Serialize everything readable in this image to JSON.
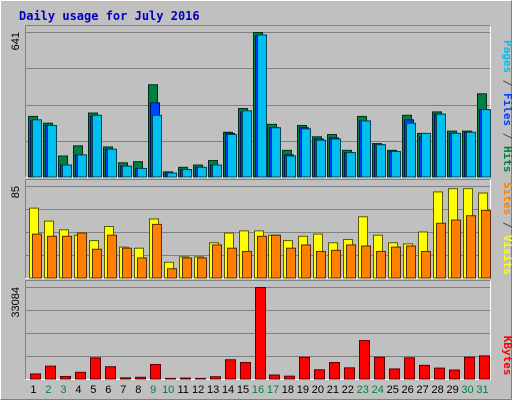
{
  "chart_data": {
    "type": "bar",
    "title": "Daily usage for July 2016",
    "categories": [
      "1",
      "2",
      "3",
      "4",
      "5",
      "6",
      "7",
      "8",
      "9",
      "10",
      "11",
      "12",
      "13",
      "14",
      "15",
      "16",
      "17",
      "18",
      "19",
      "20",
      "21",
      "22",
      "23",
      "24",
      "25",
      "26",
      "27",
      "28",
      "29",
      "30",
      "31"
    ],
    "weekend_days": [
      "2",
      "3",
      "9",
      "10",
      "16",
      "17",
      "23",
      "24",
      "30",
      "31"
    ],
    "panels": [
      {
        "id": "hits-files-pages",
        "ymax": 641,
        "ymax_label": "641",
        "right_labels": [
          {
            "text": "Pages",
            "color": "#00c0f0"
          },
          {
            "text": " / ",
            "color": "#4d4d4d"
          },
          {
            "text": "Files",
            "color": "#0040ff"
          },
          {
            "text": " / ",
            "color": "#4d4d4d"
          },
          {
            "text": "Hits",
            "color": "#008040"
          }
        ],
        "series": [
          {
            "name": "Hits",
            "color": "#008040",
            "values": [
              270,
              240,
              95,
              140,
              285,
              135,
              65,
              70,
              410,
              25,
              45,
              55,
              75,
              200,
              305,
              641,
              235,
              120,
              230,
              180,
              190,
              120,
              270,
              150,
              120,
              275,
              195,
              290,
              205,
              205,
              370
            ]
          },
          {
            "name": "Files",
            "color": "#0040ff",
            "values": [
              250,
              230,
              55,
              100,
              270,
              125,
              50,
              40,
              330,
              20,
              35,
              45,
              55,
              195,
              290,
              625,
              220,
              100,
              220,
              170,
              175,
              110,
              250,
              145,
              115,
              255,
              180,
              280,
              195,
              200,
              300
            ]
          },
          {
            "name": "Pages",
            "color": "#00c0f0",
            "values": [
              255,
              230,
              55,
              100,
              275,
              125,
              50,
              40,
              275,
              20,
              35,
              45,
              55,
              190,
              295,
              630,
              220,
              95,
              215,
              165,
              170,
              110,
              250,
              145,
              115,
              240,
              195,
              280,
              195,
              200,
              300
            ]
          }
        ]
      },
      {
        "id": "visits-sites",
        "ymax": 85,
        "ymax_label": "85",
        "right_labels": [
          {
            "text": "Sites",
            "color": "#ff8000"
          },
          {
            "text": " / ",
            "color": "#4d4d4d"
          },
          {
            "text": "Visits",
            "color": "#ffff00"
          }
        ],
        "series": [
          {
            "name": "Visits",
            "color": "#ffff00",
            "values": [
              65,
              53,
              45,
              40,
              35,
              48,
              29,
              28,
              55,
              15,
              20,
              20,
              33,
              42,
              44,
              44,
              40,
              35,
              39,
              41,
              33,
              36,
              57,
              40,
              33,
              32,
              43,
              80,
              83,
              83,
              79
            ]
          },
          {
            "name": "Sites",
            "color": "#ff8000",
            "values": [
              41,
              39,
              39,
              42,
              27,
              40,
              28,
              19,
              50,
              9,
              19,
              19,
              31,
              28,
              25,
              39,
              40,
              28,
              31,
              25,
              26,
              31,
              30,
              25,
              29,
              30,
              25,
              51,
              54,
              58,
              63
            ]
          }
        ]
      },
      {
        "id": "kbytes",
        "ymax": 33084,
        "ymax_label": "33084",
        "right_labels": [
          {
            "text": "KBytes",
            "color": "#ff0000"
          }
        ],
        "series": [
          {
            "name": "KBytes",
            "color": "#ff0000",
            "values": [
              2000,
              4800,
              1100,
              2600,
              7800,
              4600,
              600,
              800,
              5400,
              400,
              500,
              400,
              1000,
              7100,
              6100,
              33084,
              1600,
              1200,
              8000,
              3500,
              6100,
              4200,
              14000,
              8000,
              3800,
              7800,
              5100,
              4100,
              3400,
              8000,
              8500
            ]
          }
        ]
      }
    ]
  }
}
